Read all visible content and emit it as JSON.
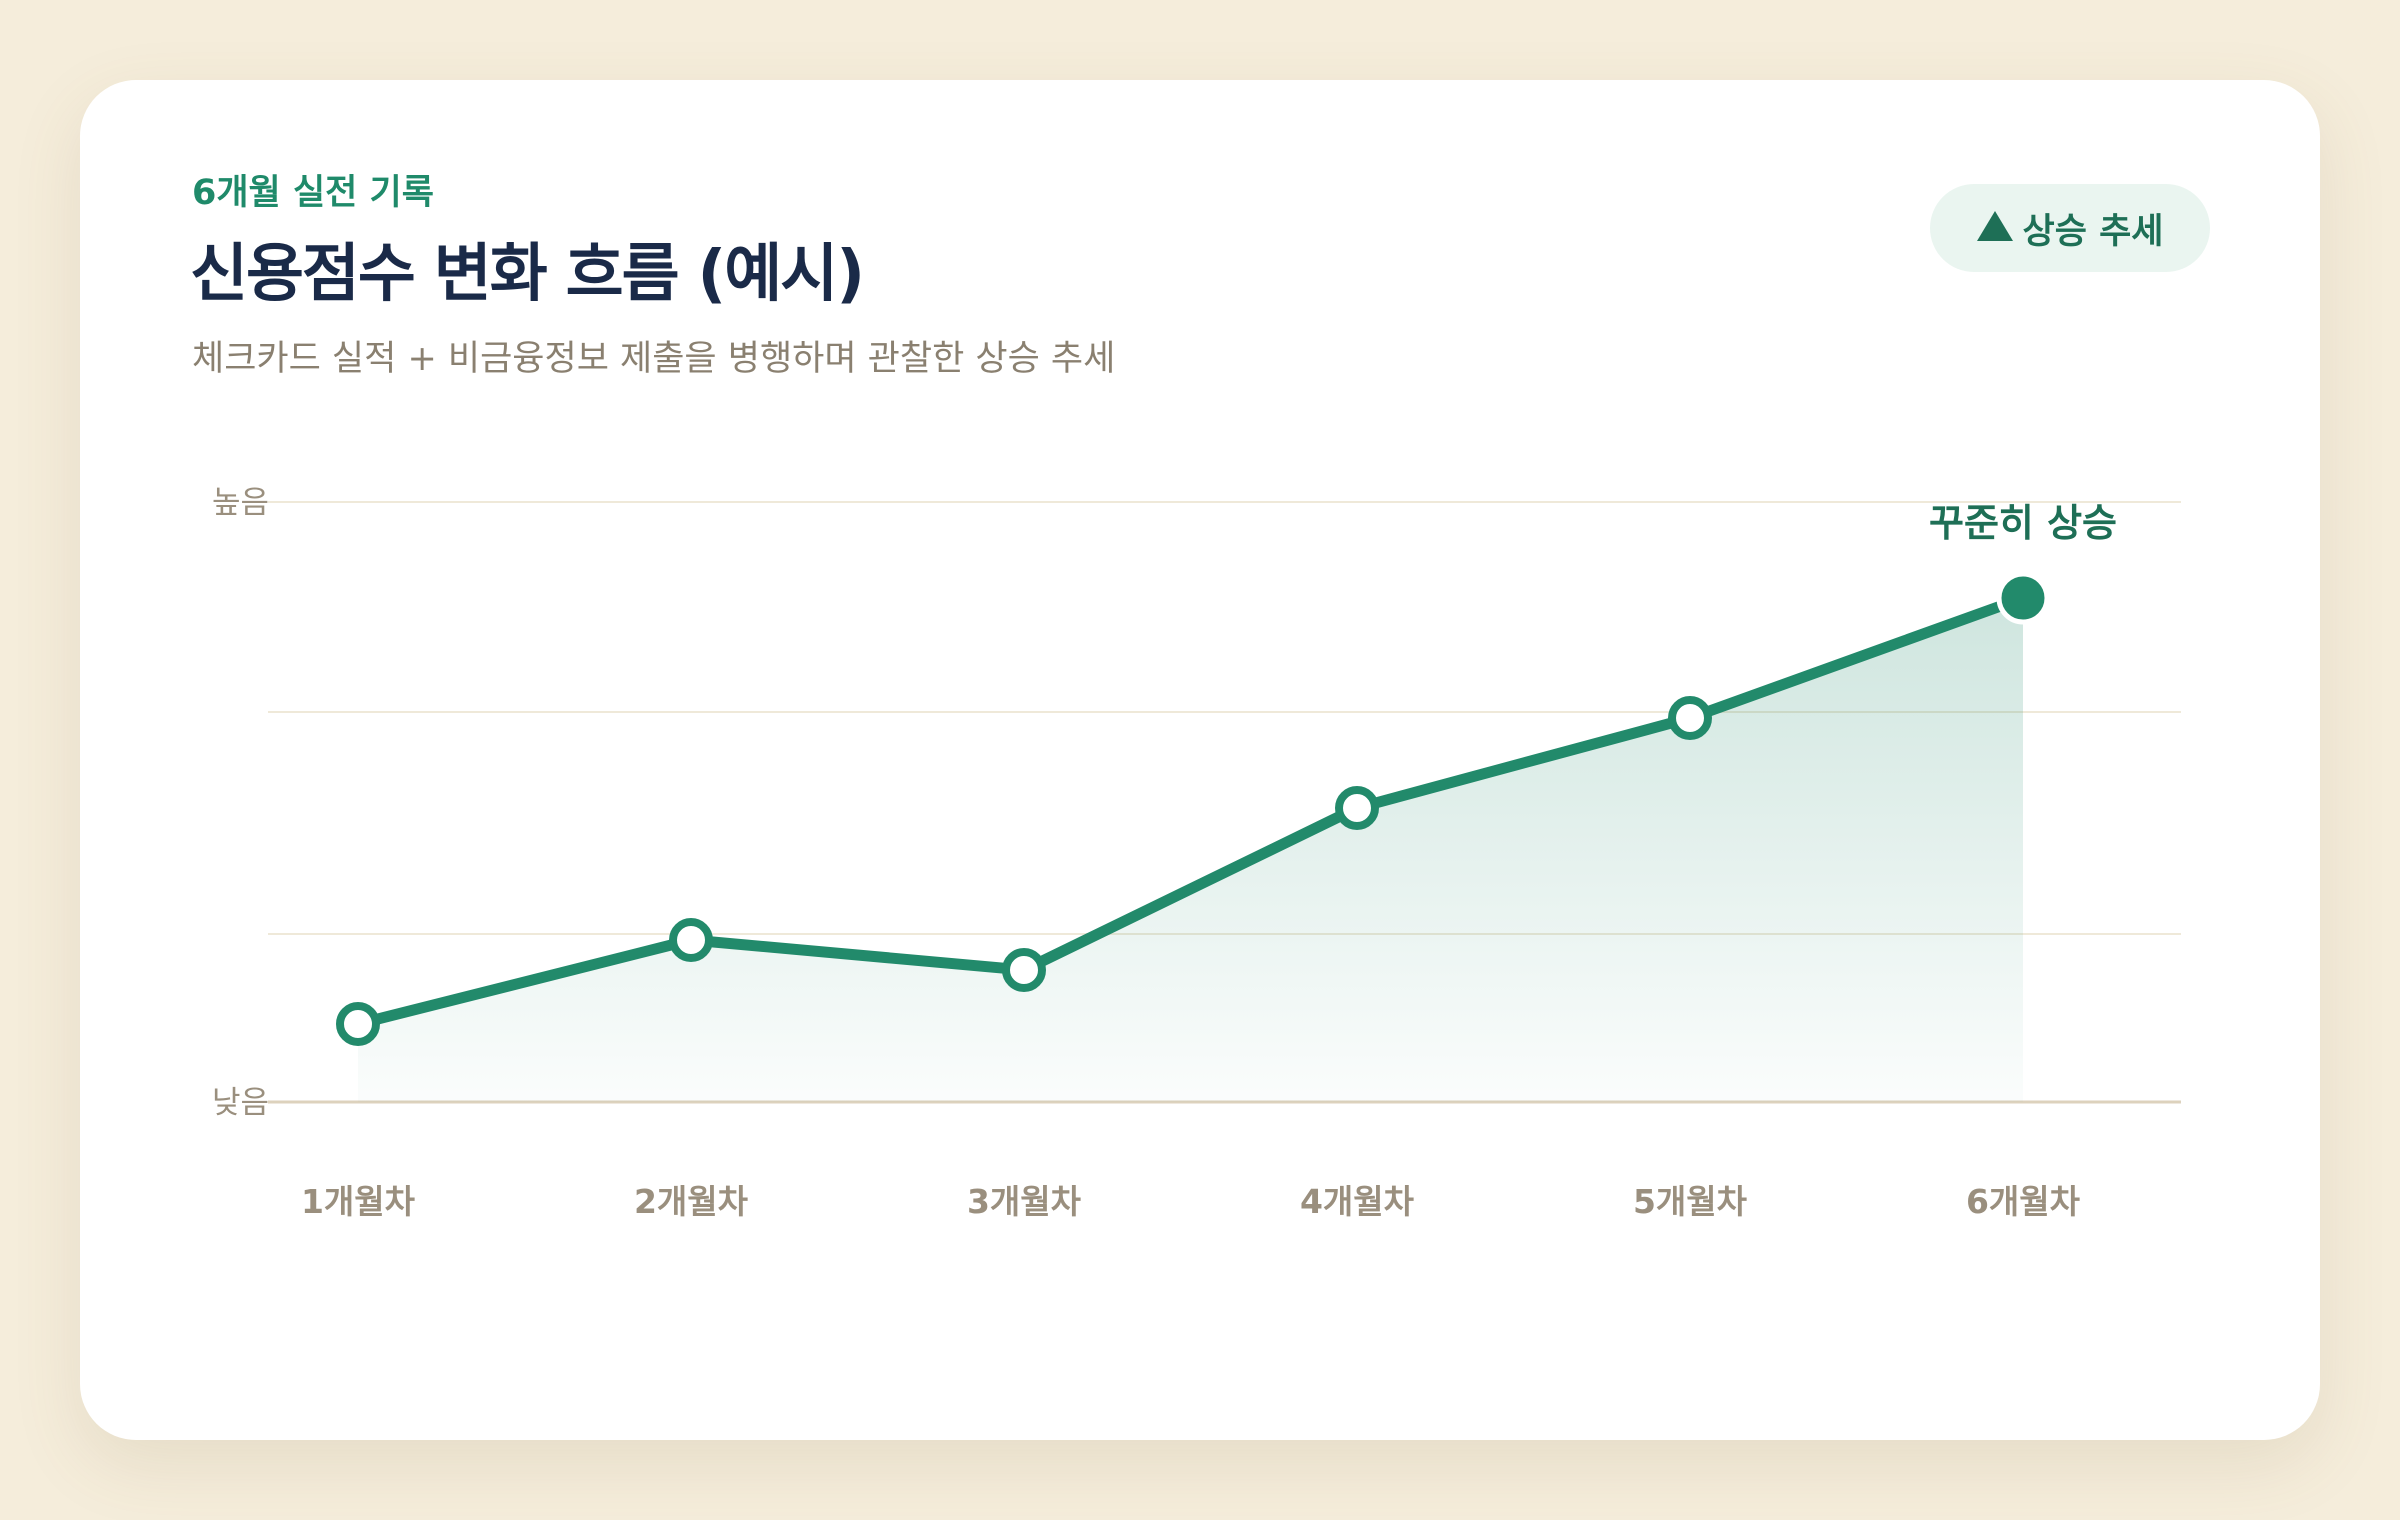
{
  "header": {
    "eyebrow": "6개월 실전 기록",
    "title": "신용점수 변화 흐름 (예시)",
    "subtitle": "체크카드 실적 + 비금융정보 제출을 병행하며 관찰한 상승 추세"
  },
  "badge": {
    "icon": "triangle-up-icon",
    "label": "상승 추세"
  },
  "colors": {
    "accent": "#228a6b",
    "badge_bg": "#eaf5f0",
    "title": "#1a2a48",
    "muted": "#9a8f7e",
    "background": "#f5eddb"
  },
  "chart_data": {
    "type": "line",
    "title": "신용점수 변화 흐름 (예시)",
    "categories": [
      "1개월차",
      "2개월차",
      "3개월차",
      "4개월차",
      "5개월차",
      "6개월차"
    ],
    "values": [
      13,
      27,
      22,
      49,
      64,
      84
    ],
    "ylim": [
      0,
      100
    ],
    "y_tick_labels": [
      {
        "value": 100,
        "label": "높음"
      },
      {
        "value": 0,
        "label": "낮음"
      }
    ],
    "gridlines": [
      100,
      65,
      28,
      0
    ],
    "annotation": {
      "index": 5,
      "text": "꾸준히 상승"
    },
    "legend": "none",
    "area_fill": true
  }
}
